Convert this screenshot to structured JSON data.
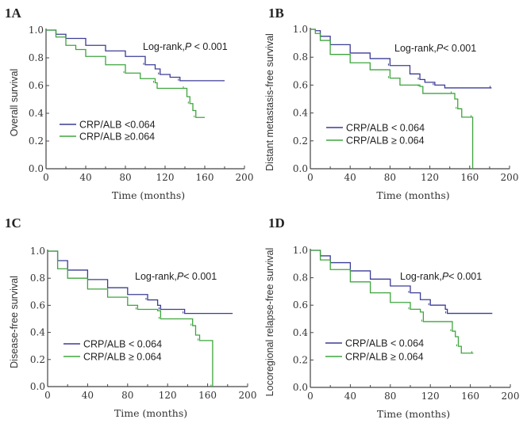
{
  "chart_data": [
    {
      "type": "line",
      "panel": "1A",
      "xlabel": "Time (months)",
      "ylabel": "Overall survival",
      "xlim": [
        0,
        200
      ],
      "ylim": [
        0,
        1
      ],
      "xticks": [
        "0",
        "40",
        "80",
        "120",
        "160",
        "200"
      ],
      "yticks": [
        "0.0",
        "0.2",
        "0.4",
        "0.6",
        "0.8",
        "1.0"
      ],
      "annotation": {
        "prefix": "Log-rank,",
        "p": "P",
        "suffix": " < 0.001"
      },
      "step": true,
      "legend": "bottom-left",
      "series": [
        {
          "name": "CRP/ALB  <0.064",
          "color": "#3c3c96",
          "x": [
            0,
            10,
            20,
            40,
            60,
            80,
            100,
            110,
            115,
            125,
            135,
            180
          ],
          "y": [
            1,
            0.97,
            0.94,
            0.89,
            0.85,
            0.81,
            0.75,
            0.72,
            0.68,
            0.66,
            0.635,
            0.635
          ]
        },
        {
          "name": "CRP/ALB  ≥0.064",
          "color": "#3ea53e",
          "x": [
            0,
            10,
            20,
            30,
            40,
            60,
            80,
            95,
            110,
            112,
            140,
            142,
            145,
            148,
            151,
            160
          ],
          "y": [
            1,
            0.95,
            0.89,
            0.86,
            0.81,
            0.75,
            0.69,
            0.65,
            0.62,
            0.58,
            0.58,
            0.52,
            0.47,
            0.42,
            0.37,
            0.37
          ]
        }
      ]
    },
    {
      "type": "line",
      "panel": "1B",
      "xlabel": "Time (months)",
      "ylabel": "Distant metastasis-free survival",
      "xlim": [
        0,
        200
      ],
      "ylim": [
        0,
        1
      ],
      "xticks": [
        "0",
        "40",
        "80",
        "120",
        "160",
        "200"
      ],
      "yticks": [
        "0.0",
        "0.2",
        "0.4",
        "0.6",
        "0.8",
        "1.0"
      ],
      "annotation": {
        "prefix": "Log-rank,",
        "p": "P",
        "suffix": "< 0.001"
      },
      "step": true,
      "legend": "bottom-left",
      "series": [
        {
          "name": "CRP/ALB < 0.064",
          "color": "#3c3c96",
          "x": [
            0,
            5,
            10,
            20,
            40,
            60,
            80,
            100,
            110,
            115,
            125,
            135,
            182
          ],
          "y": [
            1,
            0.99,
            0.95,
            0.89,
            0.83,
            0.79,
            0.74,
            0.68,
            0.64,
            0.62,
            0.6,
            0.58,
            0.58
          ]
        },
        {
          "name": "CRP/ALB ≥ 0.064",
          "color": "#3ea53e",
          "x": [
            0,
            5,
            10,
            20,
            40,
            60,
            80,
            90,
            110,
            113,
            143,
            145,
            148,
            152,
            163,
            163
          ],
          "y": [
            1,
            0.97,
            0.92,
            0.82,
            0.76,
            0.71,
            0.65,
            0.6,
            0.59,
            0.54,
            0.54,
            0.5,
            0.43,
            0.37,
            0.37,
            0
          ]
        }
      ]
    },
    {
      "type": "line",
      "panel": "1C",
      "xlabel": "Time (months)",
      "ylabel": "Disease-free survival",
      "xlim": [
        0,
        200
      ],
      "ylim": [
        0,
        1
      ],
      "xticks": [
        "0",
        "40",
        "80",
        "120",
        "160",
        "200"
      ],
      "yticks": [
        "0.0",
        "0.2",
        "0.4",
        "0.6",
        "0.8",
        "1.0"
      ],
      "annotation": {
        "prefix": "Log-rank,",
        "p": "P",
        "suffix": "< 0.001"
      },
      "step": true,
      "legend": "bottom-left",
      "series": [
        {
          "name": "CRP/ALB < 0.064",
          "color": "#3c3c96",
          "x": [
            0,
            10,
            20,
            40,
            60,
            80,
            100,
            110,
            113,
            135,
            137,
            185
          ],
          "y": [
            1,
            0.93,
            0.86,
            0.79,
            0.73,
            0.68,
            0.64,
            0.6,
            0.57,
            0.57,
            0.54,
            0.54
          ]
        },
        {
          "name": "CRP/ALB ≥ 0.064",
          "color": "#3ea53e",
          "x": [
            0,
            10,
            20,
            40,
            60,
            80,
            90,
            110,
            113,
            142,
            145,
            148,
            152,
            165,
            165
          ],
          "y": [
            1,
            0.87,
            0.8,
            0.72,
            0.66,
            0.6,
            0.57,
            0.56,
            0.5,
            0.5,
            0.45,
            0.38,
            0.34,
            0.34,
            0
          ]
        }
      ]
    },
    {
      "type": "line",
      "panel": "1D",
      "xlabel": "Time (months)",
      "ylabel": "Locoregional relapse-free survival",
      "xlim": [
        0,
        200
      ],
      "ylim": [
        0,
        1
      ],
      "xticks": [
        "0",
        "40",
        "80",
        "120",
        "160",
        "200"
      ],
      "yticks": [
        "0.0",
        "0.2",
        "0.4",
        "0.6",
        "0.8",
        "1.0"
      ],
      "annotation": {
        "prefix": "Log-rank,",
        "p": "P",
        "suffix": "< 0.001"
      },
      "step": true,
      "legend": "bottom-left",
      "series": [
        {
          "name": "CRP/ALB < 0.064",
          "color": "#3c3c96",
          "x": [
            0,
            10,
            20,
            40,
            60,
            80,
            100,
            110,
            120,
            135,
            137,
            182
          ],
          "y": [
            1,
            0.96,
            0.91,
            0.85,
            0.79,
            0.74,
            0.69,
            0.64,
            0.6,
            0.57,
            0.54,
            0.54
          ]
        },
        {
          "name": "CRP/ALB ≥ 0.064",
          "color": "#3ea53e",
          "x": [
            0,
            10,
            20,
            40,
            60,
            80,
            100,
            110,
            113,
            140,
            142,
            145,
            148,
            151,
            163
          ],
          "y": [
            1,
            0.93,
            0.86,
            0.77,
            0.69,
            0.62,
            0.57,
            0.55,
            0.48,
            0.48,
            0.41,
            0.37,
            0.3,
            0.25,
            0.25
          ]
        }
      ]
    }
  ]
}
